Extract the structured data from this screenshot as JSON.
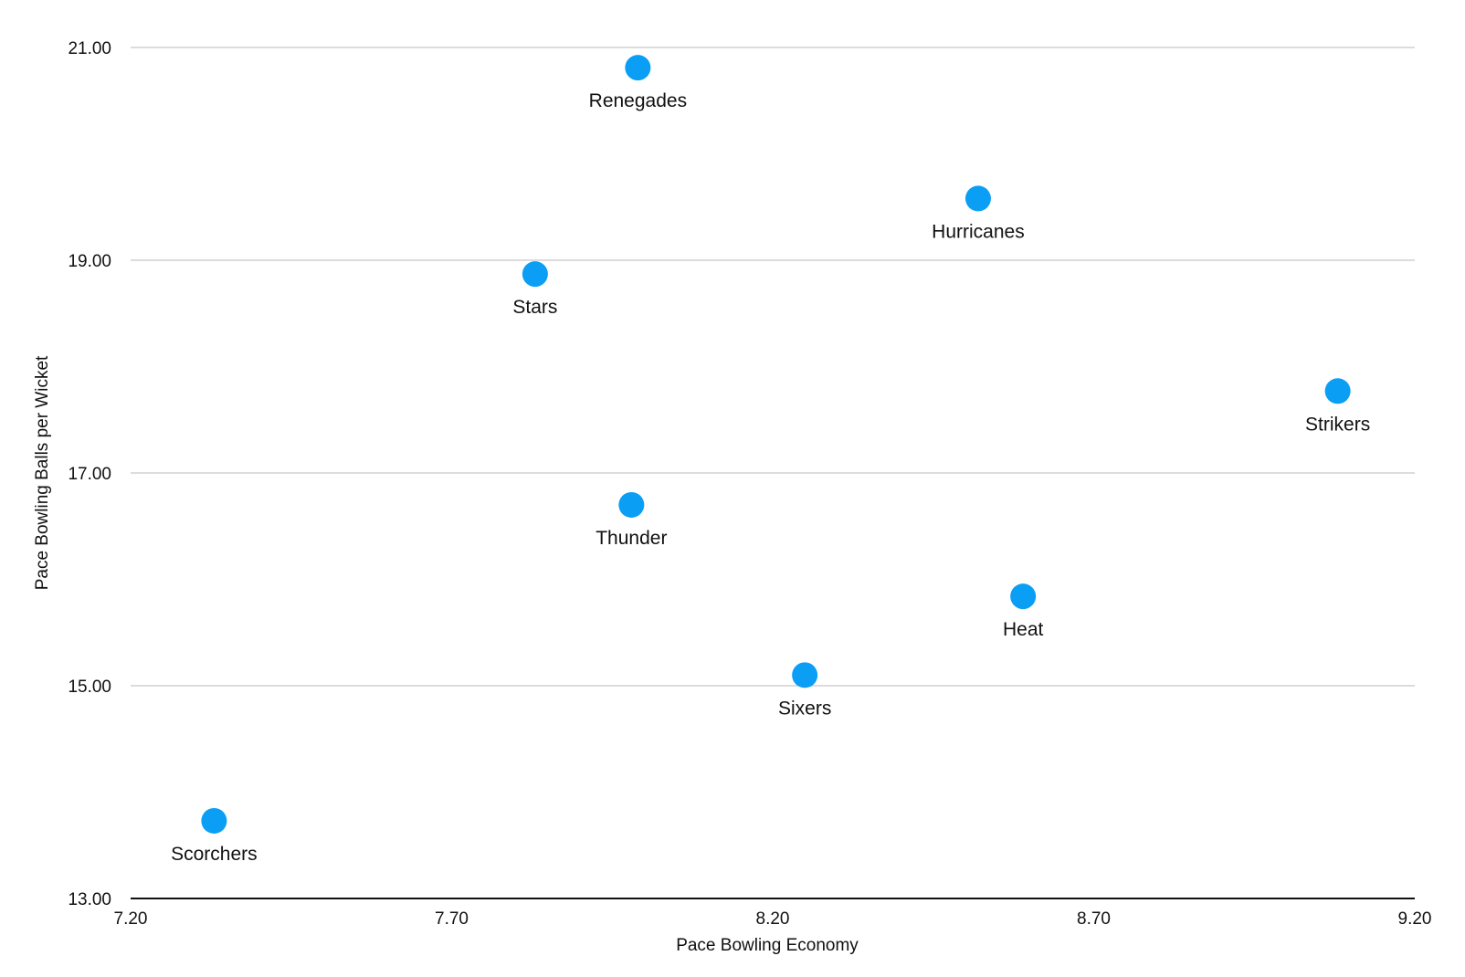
{
  "chart_data": {
    "type": "scatter",
    "title": "",
    "xlabel": "Pace Bowling Economy",
    "ylabel": "Pace Bowling Balls per Wicket",
    "xlim": [
      7.2,
      9.2
    ],
    "ylim": [
      13.0,
      21.0
    ],
    "x_ticks": [
      "7.20",
      "7.70",
      "8.20",
      "8.70",
      "9.20"
    ],
    "y_ticks": [
      "13.00",
      "15.00",
      "17.00",
      "19.00",
      "21.00"
    ],
    "grid": "horizontal",
    "point_color": "#0A9EF5",
    "points": [
      {
        "label": "Renegades",
        "x": 7.99,
        "y": 20.81
      },
      {
        "label": "Hurricanes",
        "x": 8.52,
        "y": 19.58
      },
      {
        "label": "Stars",
        "x": 7.83,
        "y": 18.87
      },
      {
        "label": "Strikers",
        "x": 9.08,
        "y": 17.77
      },
      {
        "label": "Thunder",
        "x": 7.98,
        "y": 16.7
      },
      {
        "label": "Heat",
        "x": 8.59,
        "y": 15.84
      },
      {
        "label": "Sixers",
        "x": 8.25,
        "y": 15.1
      },
      {
        "label": "Scorchers",
        "x": 7.33,
        "y": 13.73
      }
    ]
  }
}
